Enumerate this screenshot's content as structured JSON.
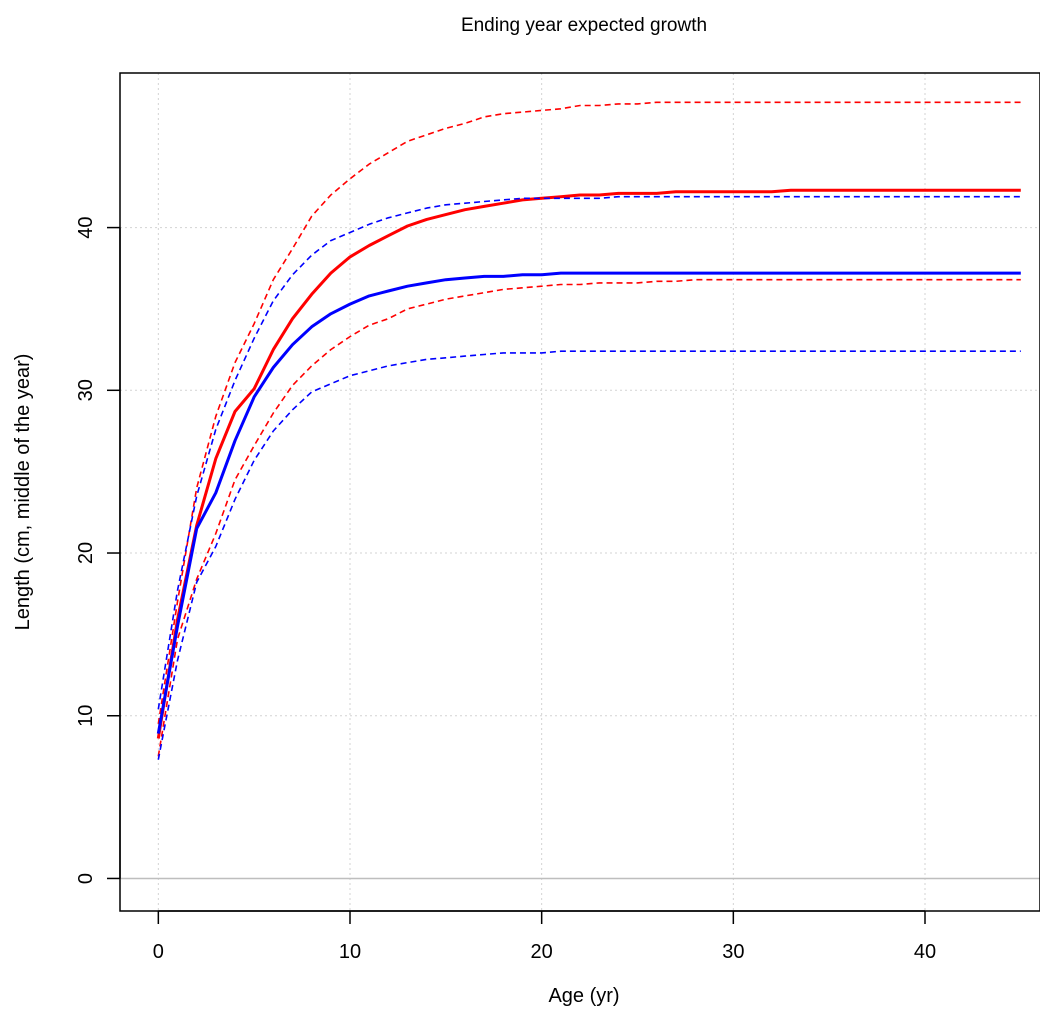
{
  "chart_data": {
    "type": "line",
    "title": "Ending year expected growth",
    "xlabel": "Age (yr)",
    "ylabel": "Length (cm, middle of the year)",
    "xlim": [
      -2,
      46
    ],
    "ylim": [
      -2,
      49.5
    ],
    "xticks": [
      0,
      10,
      20,
      30,
      40
    ],
    "yticks": [
      0,
      10,
      20,
      30,
      40
    ],
    "grid": true,
    "grid_color": "#d3d3d3",
    "zero_line_color": "#bebebe",
    "x": [
      0,
      1,
      2,
      3,
      4,
      5,
      6,
      7,
      8,
      9,
      10,
      11,
      12,
      13,
      14,
      15,
      16,
      17,
      18,
      19,
      20,
      21,
      22,
      23,
      24,
      25,
      26,
      27,
      28,
      29,
      30,
      31,
      32,
      33,
      34,
      35,
      36,
      37,
      38,
      39,
      40,
      41,
      42,
      43,
      44,
      45
    ],
    "series": [
      {
        "color": "#ff0000",
        "style": "solid",
        "width": 3,
        "values": [
          8.6,
          15.9,
          21.7,
          25.8,
          28.7,
          30.1,
          32.5,
          34.4,
          35.9,
          37.2,
          38.2,
          38.9,
          39.5,
          40.1,
          40.5,
          40.8,
          41.1,
          41.3,
          41.5,
          41.7,
          41.8,
          41.9,
          42.0,
          42.0,
          42.1,
          42.1,
          42.1,
          42.2,
          42.2,
          42.2,
          42.2,
          42.2,
          42.2,
          42.3,
          42.3,
          42.3,
          42.3,
          42.3,
          42.3,
          42.3,
          42.3,
          42.3,
          42.3,
          42.3,
          42.3,
          42.3
        ]
      },
      {
        "color": "#ff0000",
        "style": "dashed",
        "width": 1.6,
        "values": [
          9.5,
          17.0,
          24.0,
          28.4,
          31.7,
          34.1,
          36.8,
          38.7,
          40.7,
          42.0,
          43.0,
          43.9,
          44.6,
          45.3,
          45.7,
          46.1,
          46.4,
          46.8,
          47.0,
          47.1,
          47.2,
          47.3,
          47.5,
          47.5,
          47.6,
          47.6,
          47.7,
          47.7,
          47.7,
          47.7,
          47.7,
          47.7,
          47.7,
          47.7,
          47.7,
          47.7,
          47.7,
          47.7,
          47.7,
          47.7,
          47.7,
          47.7,
          47.7,
          47.7,
          47.7,
          47.7
        ]
      },
      {
        "color": "#ff0000",
        "style": "dashed",
        "width": 1.6,
        "values": [
          7.5,
          14.7,
          18.4,
          21.2,
          24.5,
          26.6,
          28.6,
          30.3,
          31.5,
          32.5,
          33.3,
          34.0,
          34.4,
          35.0,
          35.3,
          35.6,
          35.8,
          36.0,
          36.2,
          36.3,
          36.4,
          36.5,
          36.5,
          36.6,
          36.6,
          36.6,
          36.7,
          36.7,
          36.8,
          36.8,
          36.8,
          36.8,
          36.8,
          36.8,
          36.8,
          36.8,
          36.8,
          36.8,
          36.8,
          36.8,
          36.8,
          36.8,
          36.8,
          36.8,
          36.8,
          36.8
        ]
      },
      {
        "color": "#0000ff",
        "style": "solid",
        "width": 3,
        "values": [
          8.9,
          15.5,
          21.5,
          23.7,
          26.9,
          29.6,
          31.4,
          32.8,
          33.9,
          34.7,
          35.3,
          35.8,
          36.1,
          36.4,
          36.6,
          36.8,
          36.9,
          37.0,
          37.0,
          37.1,
          37.1,
          37.2,
          37.2,
          37.2,
          37.2,
          37.2,
          37.2,
          37.2,
          37.2,
          37.2,
          37.2,
          37.2,
          37.2,
          37.2,
          37.2,
          37.2,
          37.2,
          37.2,
          37.2,
          37.2,
          37.2,
          37.2,
          37.2,
          37.2,
          37.2,
          37.2
        ]
      },
      {
        "color": "#0000ff",
        "style": "dashed",
        "width": 1.6,
        "values": [
          10.4,
          17.7,
          23.5,
          27.6,
          30.6,
          33.2,
          35.5,
          37.1,
          38.3,
          39.2,
          39.7,
          40.2,
          40.6,
          40.9,
          41.2,
          41.4,
          41.5,
          41.6,
          41.7,
          41.8,
          41.8,
          41.8,
          41.8,
          41.8,
          41.9,
          41.9,
          41.9,
          41.9,
          41.9,
          41.9,
          41.9,
          41.9,
          41.9,
          41.9,
          41.9,
          41.9,
          41.9,
          41.9,
          41.9,
          41.9,
          41.9,
          41.9,
          41.9,
          41.9,
          41.9,
          41.9
        ]
      },
      {
        "color": "#0000ff",
        "style": "dashed",
        "width": 1.6,
        "values": [
          7.3,
          13.4,
          18.2,
          20.4,
          23.3,
          25.7,
          27.5,
          28.8,
          29.9,
          30.4,
          30.9,
          31.2,
          31.5,
          31.7,
          31.9,
          32.0,
          32.1,
          32.2,
          32.3,
          32.3,
          32.3,
          32.4,
          32.4,
          32.4,
          32.4,
          32.4,
          32.4,
          32.4,
          32.4,
          32.4,
          32.4,
          32.4,
          32.4,
          32.4,
          32.4,
          32.4,
          32.4,
          32.4,
          32.4,
          32.4,
          32.4,
          32.4,
          32.4,
          32.4,
          32.4,
          32.4
        ]
      }
    ]
  }
}
